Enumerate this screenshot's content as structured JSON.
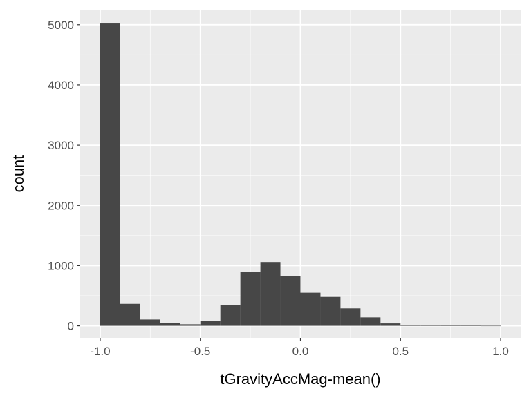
{
  "chart_data": {
    "type": "histogram",
    "title": "",
    "xlabel": "tGravityAccMag-mean()",
    "ylabel": "count",
    "bins": [
      {
        "x0": -1.0,
        "x1": -0.9,
        "count": 5020
      },
      {
        "x0": -0.9,
        "x1": -0.8,
        "count": 365
      },
      {
        "x0": -0.8,
        "x1": -0.7,
        "count": 105
      },
      {
        "x0": -0.7,
        "x1": -0.6,
        "count": 50
      },
      {
        "x0": -0.6,
        "x1": -0.5,
        "count": 25
      },
      {
        "x0": -0.5,
        "x1": -0.4,
        "count": 85
      },
      {
        "x0": -0.4,
        "x1": -0.3,
        "count": 350
      },
      {
        "x0": -0.3,
        "x1": -0.2,
        "count": 900
      },
      {
        "x0": -0.2,
        "x1": -0.1,
        "count": 1060
      },
      {
        "x0": -0.1,
        "x1": 0.0,
        "count": 830
      },
      {
        "x0": 0.0,
        "x1": 0.1,
        "count": 550
      },
      {
        "x0": 0.1,
        "x1": 0.2,
        "count": 480
      },
      {
        "x0": 0.2,
        "x1": 0.3,
        "count": 290
      },
      {
        "x0": 0.3,
        "x1": 0.4,
        "count": 140
      },
      {
        "x0": 0.4,
        "x1": 0.5,
        "count": 40
      },
      {
        "x0": 0.5,
        "x1": 0.6,
        "count": 10
      },
      {
        "x0": 0.6,
        "x1": 0.7,
        "count": 8
      },
      {
        "x0": 0.7,
        "x1": 0.8,
        "count": 5
      },
      {
        "x0": 0.8,
        "x1": 0.9,
        "count": 2
      },
      {
        "x0": 0.9,
        "x1": 1.0,
        "count": 1
      }
    ],
    "xlim": [
      -1.1,
      1.1
    ],
    "ylim": [
      -200,
      5250
    ],
    "x_ticks": [
      -1.0,
      -0.5,
      0.0,
      0.5,
      1.0
    ],
    "x_tick_labels": [
      "-1.0",
      "-0.5",
      "0.0",
      "0.5",
      "1.0"
    ],
    "y_ticks": [
      0,
      1000,
      2000,
      3000,
      4000,
      5000
    ],
    "y_tick_labels": [
      "0",
      "1000",
      "2000",
      "3000",
      "4000",
      "5000"
    ],
    "grid": true,
    "colors": {
      "panel_background": "#ebebeb",
      "grid_major": "#ffffff",
      "bar_fill": "#474747",
      "tick_text": "#4d4d4d",
      "tick_mark": "#333333"
    }
  }
}
